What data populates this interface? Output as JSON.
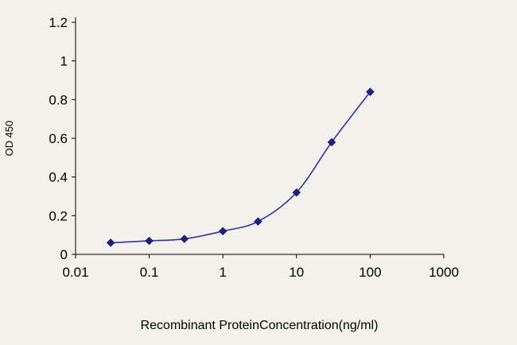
{
  "chart_data": {
    "type": "line",
    "title": "",
    "xlabel": "Recombinant ProteinConcentration(ng/ml)",
    "ylabel": "OD 450",
    "x_scale": "log",
    "y_scale": "linear",
    "xlim": [
      0.01,
      1000
    ],
    "ylim": [
      0,
      1.2
    ],
    "x_ticks": [
      0.01,
      0.1,
      1,
      10,
      100,
      1000
    ],
    "x_tick_labels": [
      "0.01",
      "0.1",
      "1",
      "10",
      "100",
      "1000"
    ],
    "y_ticks": [
      0,
      0.2,
      0.4,
      0.6,
      0.8,
      1,
      1.2
    ],
    "y_tick_labels": [
      "0",
      "0.2",
      "0.4",
      "0.6",
      "0.8",
      "1",
      "1.2"
    ],
    "grid": false,
    "legend": false,
    "background_color": "#f2f1ec",
    "axis_color": "#000000",
    "series": [
      {
        "name": "OD 450",
        "x": [
          0.03,
          0.1,
          0.3,
          1,
          3,
          10,
          30,
          100
        ],
        "y": [
          0.06,
          0.07,
          0.08,
          0.12,
          0.17,
          0.32,
          0.58,
          0.84
        ],
        "line_color": "#3333a0",
        "marker": "diamond",
        "marker_color": "#1f1f7e"
      }
    ]
  }
}
